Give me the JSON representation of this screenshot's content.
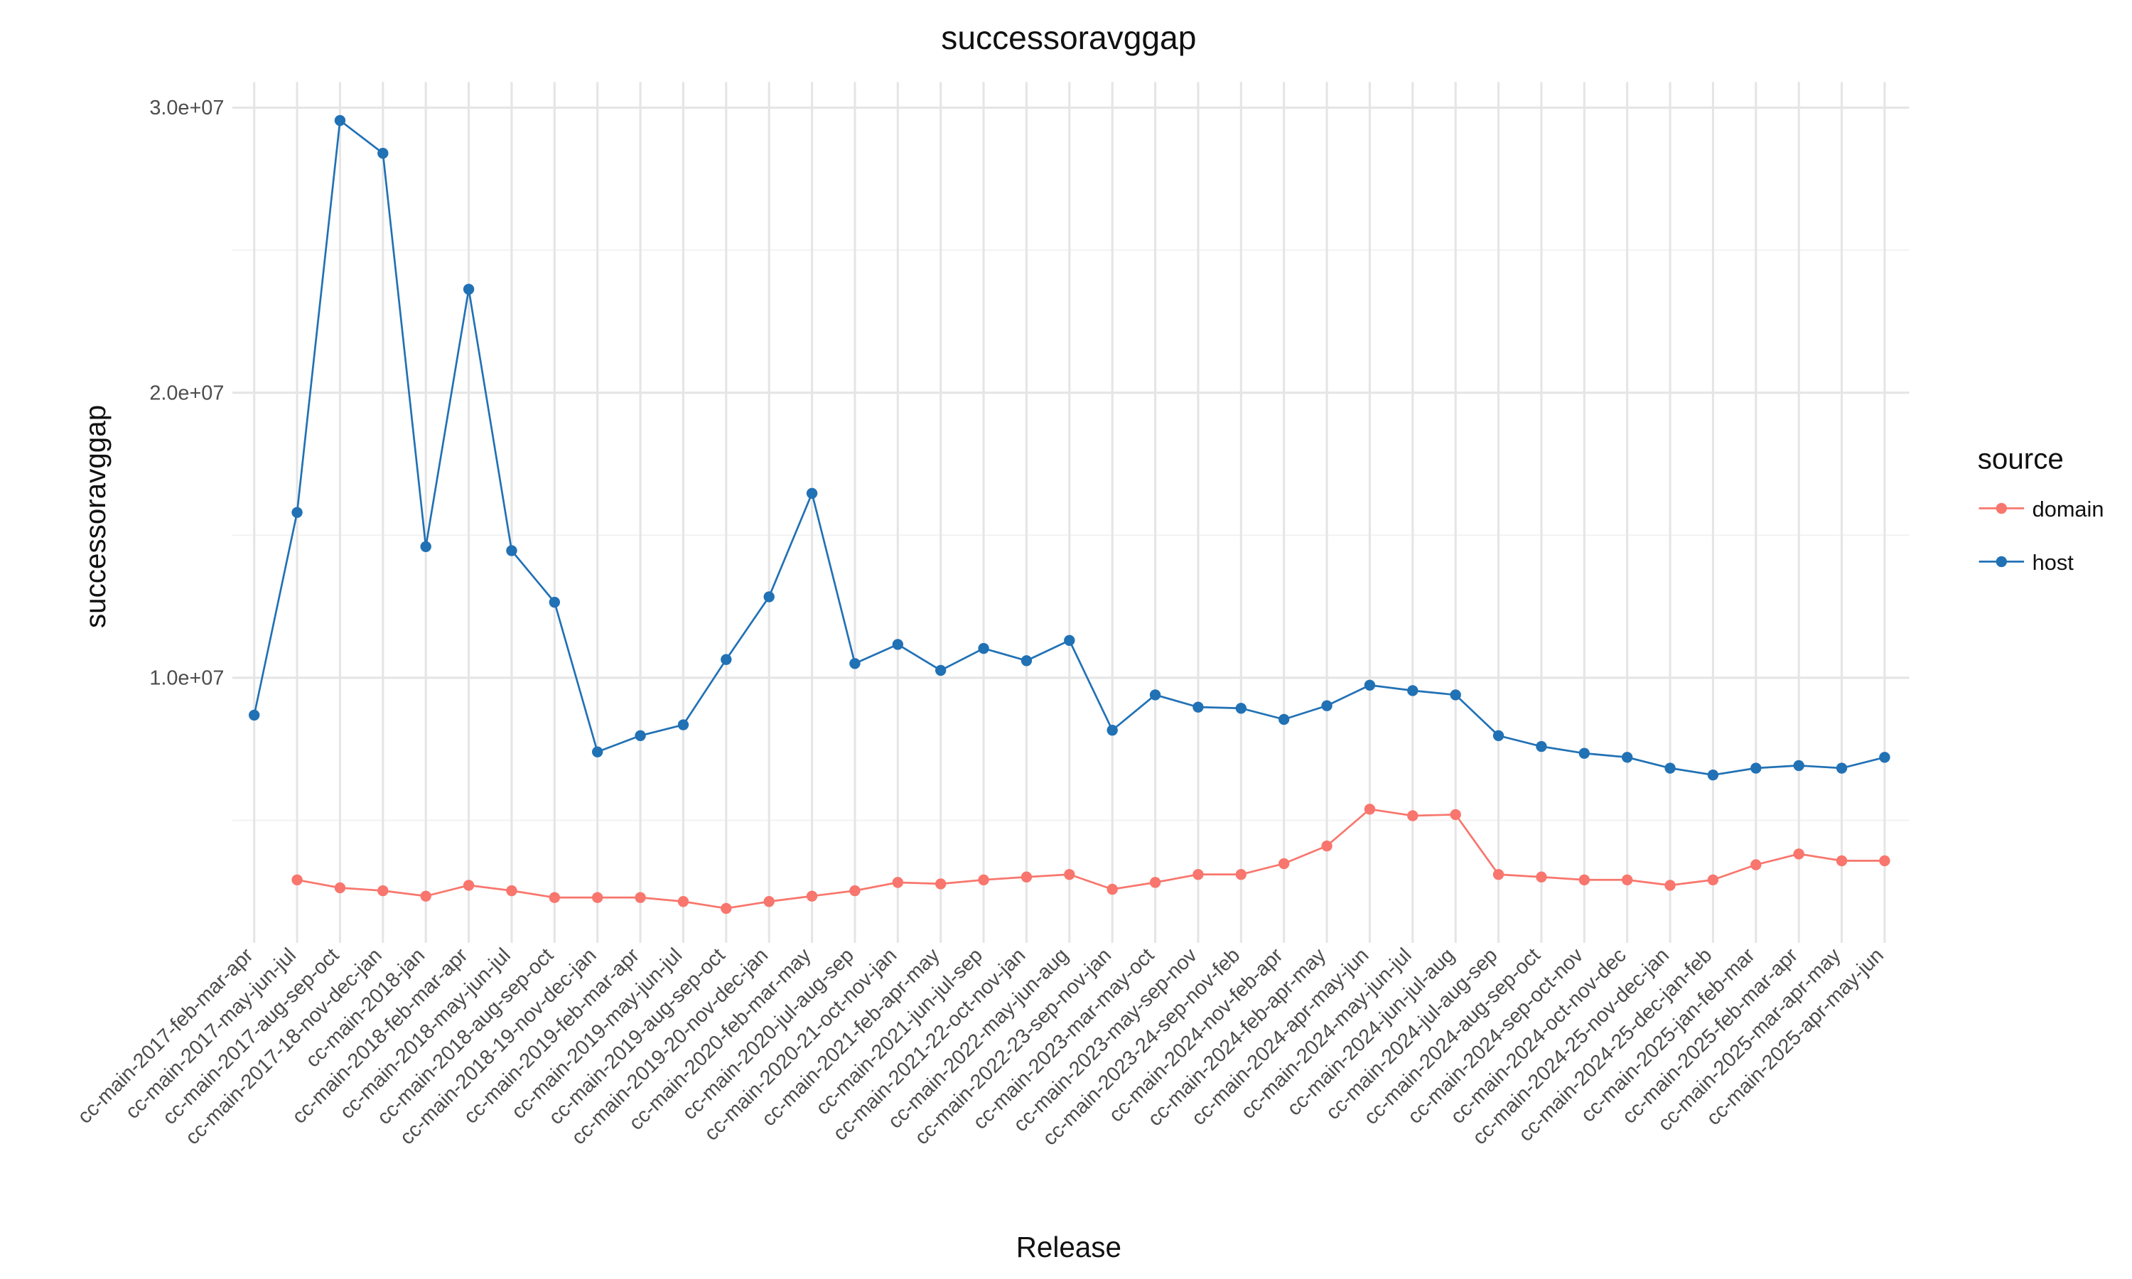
{
  "chart_data": {
    "type": "line",
    "title": "successoravggap",
    "x_label": "Release",
    "y_label": "successoravggap",
    "legend_title": "source",
    "legend_position": "right",
    "grid": true,
    "categories": [
      "cc-main-2017-feb-mar-apr",
      "cc-main-2017-may-jun-jul",
      "cc-main-2017-aug-sep-oct",
      "cc-main-2017-18-nov-dec-jan",
      "cc-main-2018-jan",
      "cc-main-2018-feb-mar-apr",
      "cc-main-2018-may-jun-jul",
      "cc-main-2018-aug-sep-oct",
      "cc-main-2018-19-nov-dec-jan",
      "cc-main-2019-feb-mar-apr",
      "cc-main-2019-may-jun-jul",
      "cc-main-2019-aug-sep-oct",
      "cc-main-2019-20-nov-dec-jan",
      "cc-main-2020-feb-mar-may",
      "cc-main-2020-jul-aug-sep",
      "cc-main-2020-21-oct-nov-jan",
      "cc-main-2021-feb-apr-may",
      "cc-main-2021-jun-jul-sep",
      "cc-main-2021-22-oct-nov-jan",
      "cc-main-2022-may-jun-aug",
      "cc-main-2022-23-sep-nov-jan",
      "cc-main-2023-mar-may-oct",
      "cc-main-2023-may-sep-nov",
      "cc-main-2023-24-sep-nov-feb",
      "cc-main-2024-nov-feb-apr",
      "cc-main-2024-feb-apr-may",
      "cc-main-2024-apr-may-jun",
      "cc-main-2024-may-jun-jul",
      "cc-main-2024-jun-jul-aug",
      "cc-main-2024-jul-aug-sep",
      "cc-main-2024-aug-sep-oct",
      "cc-main-2024-sep-oct-nov",
      "cc-main-2024-oct-nov-dec",
      "cc-main-2024-25-nov-dec-jan",
      "cc-main-2024-25-dec-jan-feb",
      "cc-main-2025-jan-feb-mar",
      "cc-main-2025-feb-mar-apr",
      "cc-main-2025-mar-apr-may",
      "cc-main-2025-apr-may-jun"
    ],
    "series": [
      {
        "name": "domain",
        "color": "#f8766d",
        "values": [
          null,
          2910000,
          2630000,
          2530000,
          2340000,
          2720000,
          2530000,
          2290000,
          2290000,
          2290000,
          2150000,
          1910000,
          2150000,
          2340000,
          2530000,
          2820000,
          2770000,
          2910000,
          3010000,
          3100000,
          2580000,
          2820000,
          3100000,
          3100000,
          3480000,
          4100000,
          5390000,
          5160000,
          5200000,
          3100000,
          3010000,
          2910000,
          2910000,
          2720000,
          2910000,
          3440000,
          3820000,
          3580000,
          3580000
        ]
      },
      {
        "name": "host",
        "color": "#2171b5",
        "values": [
          8690000,
          15800000,
          29550000,
          28400000,
          14600000,
          23630000,
          14460000,
          12650000,
          7400000,
          7970000,
          8350000,
          10640000,
          12840000,
          16470000,
          10500000,
          11170000,
          10260000,
          11030000,
          10600000,
          11310000,
          8160000,
          9400000,
          8970000,
          8930000,
          8540000,
          9020000,
          9740000,
          9550000,
          9400000,
          7970000,
          7590000,
          7350000,
          7210000,
          6830000,
          6590000,
          6830000,
          6920000,
          6830000,
          7210000
        ]
      }
    ],
    "ylim": [
      700000,
      30900000
    ],
    "yticks": [
      {
        "value": 10000000,
        "label": "1.0e+07"
      },
      {
        "value": 20000000,
        "label": "2.0e+07"
      },
      {
        "value": 30000000,
        "label": "3.0e+07"
      }
    ],
    "minor_yticks": [
      5000000,
      15000000,
      25000000
    ]
  }
}
